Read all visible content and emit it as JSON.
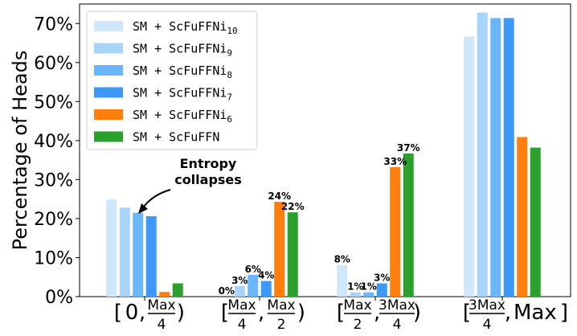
{
  "chart_data": {
    "type": "bar",
    "ylabel": "Percentage of Heads",
    "xlabel": "",
    "title": "",
    "ylim": [
      0,
      75
    ],
    "yticks": [
      0,
      10,
      20,
      30,
      40,
      50,
      60,
      70
    ],
    "ytick_suffix": "%",
    "grid": false,
    "legend_position": "top-left",
    "categories": [
      "[0, Max/4)",
      "[Max/4, Max/2)",
      "[Max/2, 3Max/4)",
      "[3Max/4, Max]"
    ],
    "category_parts": [
      {
        "open": "[",
        "a": "0",
        "b_num": "Max",
        "b_den": "4",
        "close": ")"
      },
      {
        "open": "[",
        "a_num": "Max",
        "a_den": "4",
        "b_num": "Max",
        "b_den": "2",
        "close": ")"
      },
      {
        "open": "[",
        "a_num": "Max",
        "a_den": "2",
        "b_num": "3Max",
        "b_den": "4",
        "close": ")"
      },
      {
        "open": "[",
        "a_num": "3Max",
        "a_den": "4",
        "b": "Max",
        "close": "]"
      }
    ],
    "series": [
      {
        "name": "SM + ScFuFFNi",
        "sub": "10",
        "color": "#cfe6fb",
        "values": [
          24.9,
          0,
          8.1,
          66.7
        ],
        "labels": [
          "",
          "0%",
          "8%",
          ""
        ]
      },
      {
        "name": "SM + ScFuFFNi",
        "sub": "9",
        "color": "#a9d4fa",
        "values": [
          22.8,
          2.7,
          1.1,
          72.8
        ],
        "labels": [
          "",
          "3%",
          "1%",
          ""
        ]
      },
      {
        "name": "SM + ScFuFFNi",
        "sub": "8",
        "color": "#6bb6f8",
        "values": [
          21.5,
          5.6,
          1.1,
          71.4
        ],
        "labels": [
          "",
          "6%",
          "1%",
          ""
        ]
      },
      {
        "name": "SM + ScFuFFNi",
        "sub": "7",
        "color": "#3d99f5",
        "values": [
          20.6,
          4.0,
          3.4,
          71.4
        ],
        "labels": [
          "",
          "4%",
          "3%",
          ""
        ]
      },
      {
        "name": "SM + ScFuFFNi",
        "sub": "6",
        "color": "#fe7f0e",
        "values": [
          1.2,
          24.3,
          33.2,
          40.9
        ],
        "labels": [
          "",
          "24%",
          "33%",
          ""
        ]
      },
      {
        "name": "SM + ScFuFFN",
        "sub": "",
        "color": "#2ca02c",
        "values": [
          3.4,
          21.6,
          36.7,
          38.2
        ],
        "labels": [
          "",
          "22%",
          "37%",
          ""
        ]
      }
    ],
    "annotations": [
      {
        "line1": "Entropy",
        "line2": "collapses"
      }
    ]
  }
}
